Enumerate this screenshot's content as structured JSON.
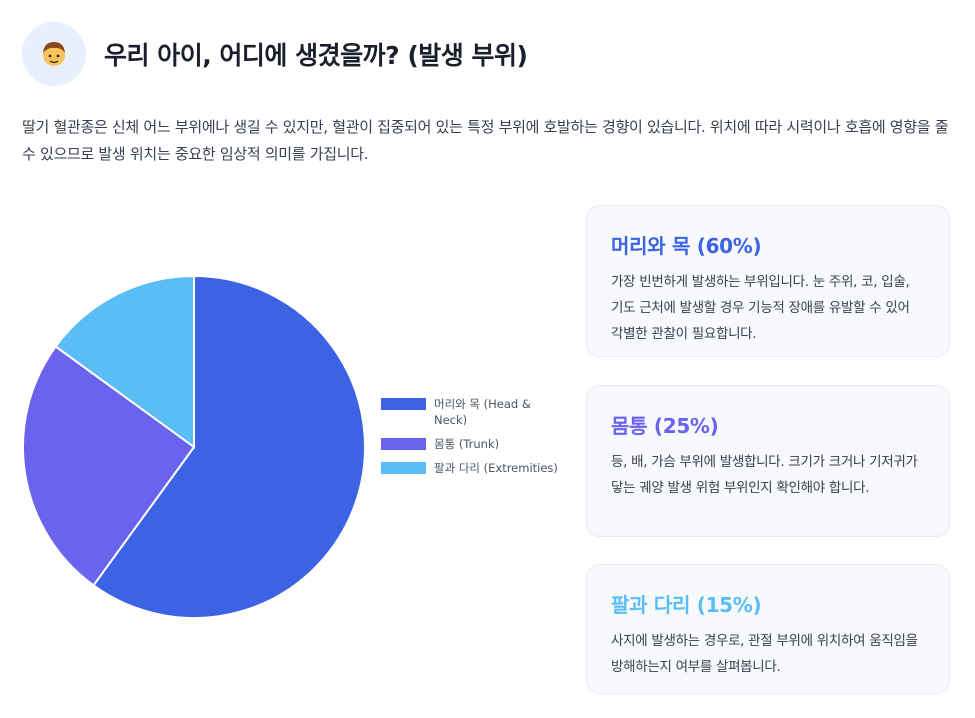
{
  "header": {
    "icon": "boy-face-icon",
    "title": "우리 아이, 어디에 생겼을까? (발생 부위)"
  },
  "intro": "딸기 혈관종은 신체 어느 부위에나 생길 수 있지만, 혈관이 집중되어 있는 특정 부위에 호발하는 경향이 있습니다. 위치에 따라 시력이나 호흡에 영향을 줄 수 있으므로 발생 위치는 중요한 임상적 의미를 가집니다.",
  "chart_data": {
    "type": "pie",
    "labels": [
      "머리와 목 (Head & Neck)",
      "몸통 (Trunk)",
      "팔과 다리 (Extremities)"
    ],
    "values": [
      60,
      25,
      15
    ],
    "colors": [
      "#3b63e4",
      "#6a63ee",
      "#5bbdf5"
    ],
    "legend_position": "right"
  },
  "cards": [
    {
      "title": "머리와 목 (60%)",
      "color": "#3b63e4",
      "desc": "가장 빈번하게 발생하는 부위입니다. 눈 주위, 코, 입술, 기도 근처에 발생할 경우 기능적 장애를 유발할 수 있어 각별한 관찰이 필요합니다."
    },
    {
      "title": "몸통 (25%)",
      "color": "#6a63ee",
      "desc": "등, 배, 가슴 부위에 발생합니다. 크기가 크거나 기저귀가 닿는 궤양 발생 위험 부위인지 확인해야 합니다."
    },
    {
      "title": "팔과 다리 (15%)",
      "color": "#5bbdf5",
      "desc": "사지에 발생하는 경우로, 관절 부위에 위치하여 움직임을 방해하는지 여부를 살펴봅니다."
    }
  ]
}
